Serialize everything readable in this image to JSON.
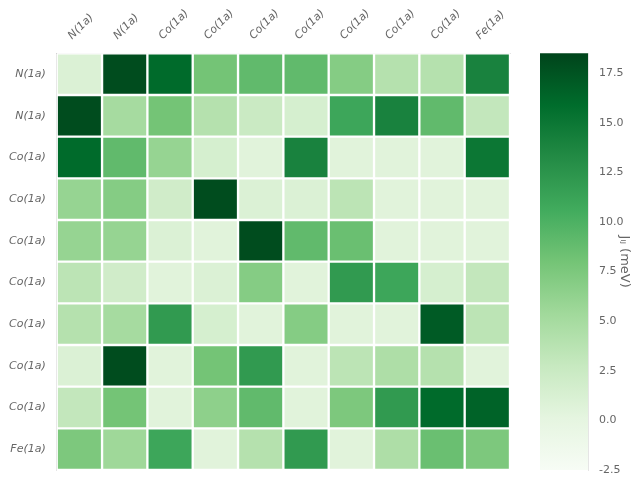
{
  "chart_data": {
    "type": "heatmap",
    "categories": [
      "N(1a)",
      "N(1a)",
      "Co(1a)",
      "Co(1a)",
      "Co(1a)",
      "Co(1a)",
      "Co(1a)",
      "Co(1a)",
      "Co(1a)",
      "Fe(1a)"
    ],
    "matrix": [
      [
        1.0,
        18.0,
        16.0,
        8.0,
        9.0,
        9.0,
        7.0,
        4.0,
        4.0,
        14.0
      ],
      [
        18.0,
        5.0,
        8.0,
        4.0,
        2.5,
        1.5,
        11.0,
        14.0,
        9.0,
        3.0
      ],
      [
        16.0,
        9.0,
        6.0,
        1.5,
        0.5,
        14.0,
        0.5,
        0.5,
        0.5,
        15.0
      ],
      [
        6.0,
        7.0,
        2.0,
        18.0,
        1.0,
        1.0,
        3.5,
        0.5,
        0.5,
        0.5
      ],
      [
        6.0,
        6.0,
        1.0,
        0.5,
        18.0,
        9.0,
        8.5,
        0.5,
        0.5,
        0.5
      ],
      [
        3.5,
        2.0,
        0.5,
        1.0,
        7.0,
        0.5,
        12.0,
        11.0,
        1.5,
        3.0
      ],
      [
        4.0,
        5.0,
        12.0,
        1.5,
        0.5,
        7.0,
        0.5,
        0.5,
        17.0,
        3.5
      ],
      [
        1.0,
        18.0,
        0.5,
        8.0,
        12.0,
        0.5,
        3.5,
        4.5,
        4.0,
        0.5
      ],
      [
        3.0,
        8.0,
        0.5,
        6.5,
        9.0,
        0.5,
        7.5,
        12.0,
        16.0,
        16.5
      ],
      [
        7.5,
        5.5,
        11.0,
        0.5,
        4.0,
        12.0,
        0.5,
        4.5,
        8.5,
        7.5
      ]
    ],
    "color": "Greens",
    "colorbar_label": "Jᵢⱼ (meV)",
    "colorbar_range": [
      -2.5,
      18.5
    ],
    "colorbar_ticks": [
      -2.5,
      {
        "value": 0.0,
        "label": "0.0"
      },
      2.5,
      {
        "value": 5.0,
        "label": "5.0"
      },
      7.5,
      {
        "value": 10.0,
        "label": "10.0"
      },
      12.5,
      {
        "value": 15.0,
        "label": "15.0"
      },
      17.5
    ],
    "grid": false,
    "legend": false
  }
}
